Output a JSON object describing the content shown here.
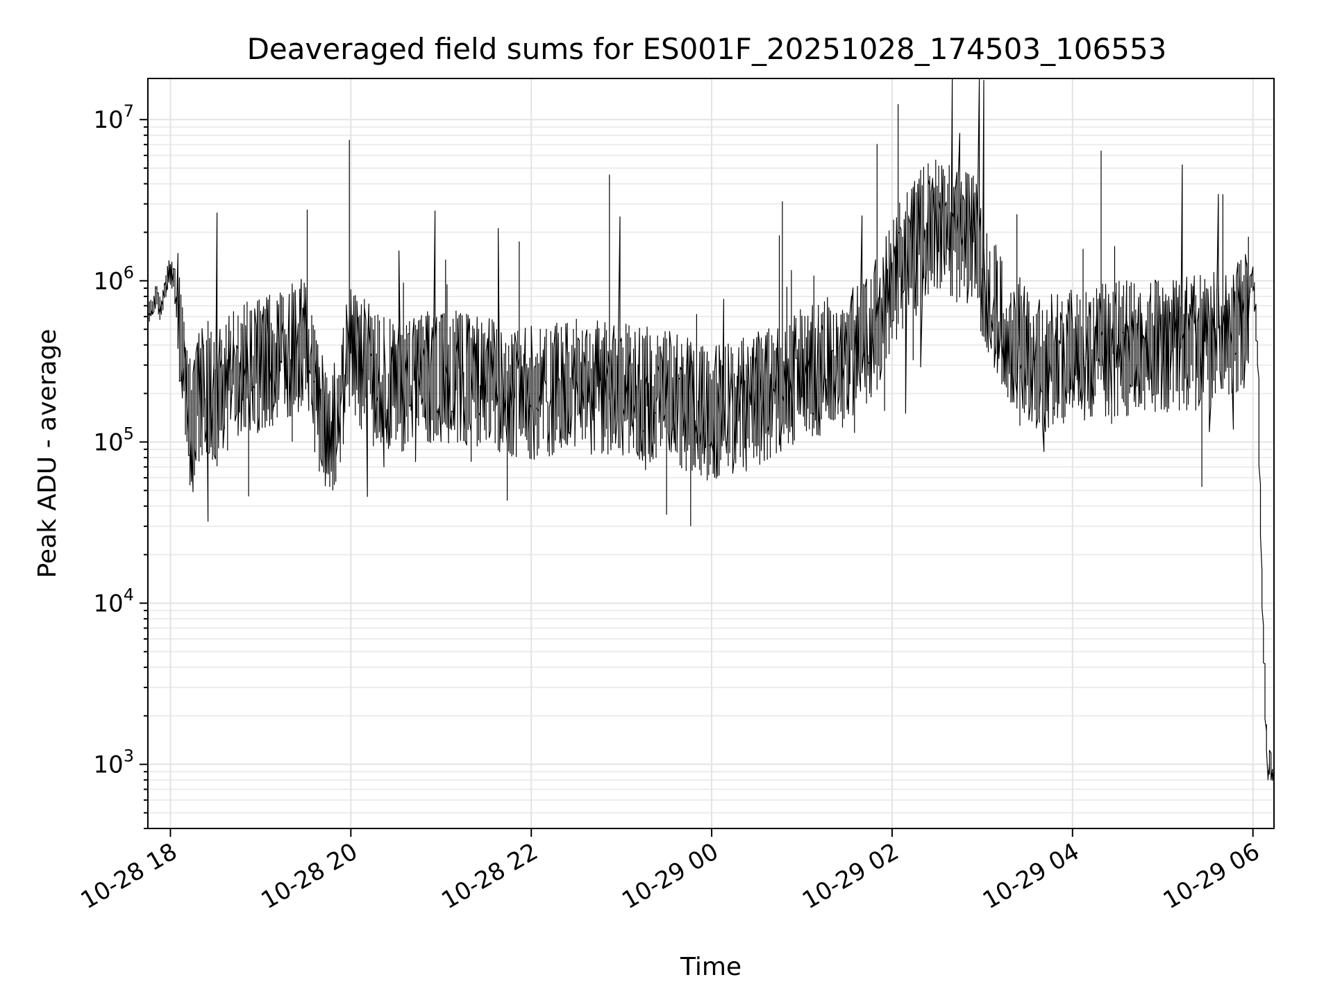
{
  "chart_data": {
    "type": "line",
    "title": "Deaveraged field sums for ES001F_20251028_174503_106553",
    "xlabel": "Time",
    "ylabel": "Peak ADU - average",
    "yscale": "log",
    "xlim": [
      "2025-10-28 17:45",
      "2025-10-29 06:14"
    ],
    "ylim": [
      400,
      18000000
    ],
    "grid": true,
    "x_ticks": [
      {
        "value": "2025-10-28 18:00",
        "label": "10-28 18"
      },
      {
        "value": "2025-10-28 20:00",
        "label": "10-28 20"
      },
      {
        "value": "2025-10-28 22:00",
        "label": "10-28 22"
      },
      {
        "value": "2025-10-29 00:00",
        "label": "10-29 00"
      },
      {
        "value": "2025-10-29 02:00",
        "label": "10-29 02"
      },
      {
        "value": "2025-10-29 04:00",
        "label": "10-29 04"
      },
      {
        "value": "2025-10-29 06:00",
        "label": "10-29 06"
      }
    ],
    "y_ticks": [
      {
        "value": 1000,
        "base": "10",
        "exp": "3"
      },
      {
        "value": 10000,
        "base": "10",
        "exp": "4"
      },
      {
        "value": 100000,
        "base": "10",
        "exp": "5"
      },
      {
        "value": 1000000,
        "base": "10",
        "exp": "6"
      },
      {
        "value": 10000000,
        "base": "10",
        "exp": "7"
      }
    ],
    "series": [
      {
        "color": "#000000",
        "x": [
          "2025-10-28 17:45",
          "2025-10-28 17:48",
          "2025-10-28 17:51",
          "2025-10-28 17:54",
          "2025-10-28 17:57",
          "2025-10-28 18:00",
          "2025-10-28 18:03",
          "2025-10-28 18:06",
          "2025-10-28 18:09",
          "2025-10-28 18:12",
          "2025-10-28 18:15",
          "2025-10-28 18:20",
          "2025-10-28 18:25",
          "2025-10-28 18:30",
          "2025-10-28 18:35",
          "2025-10-28 18:40",
          "2025-10-28 18:45",
          "2025-10-28 18:50",
          "2025-10-28 19:00",
          "2025-10-28 19:15",
          "2025-10-28 19:30",
          "2025-10-28 19:40",
          "2025-10-28 19:50",
          "2025-10-28 20:00",
          "2025-10-28 20:15",
          "2025-10-28 20:30",
          "2025-10-28 20:45",
          "2025-10-28 21:00",
          "2025-10-28 21:30",
          "2025-10-28 22:00",
          "2025-10-28 22:30",
          "2025-10-28 23:00",
          "2025-10-28 23:30",
          "2025-10-28 23:50",
          "2025-10-29 00:00",
          "2025-10-29 00:30",
          "2025-10-29 01:00",
          "2025-10-29 01:30",
          "2025-10-29 01:45",
          "2025-10-29 02:00",
          "2025-10-29 02:15",
          "2025-10-29 02:30",
          "2025-10-29 02:45",
          "2025-10-29 02:55",
          "2025-10-29 03:05",
          "2025-10-29 03:20",
          "2025-10-29 03:40",
          "2025-10-29 04:00",
          "2025-10-29 04:30",
          "2025-10-29 05:00",
          "2025-10-29 05:30",
          "2025-10-29 05:45",
          "2025-10-29 05:55",
          "2025-10-29 06:00",
          "2025-10-29 06:02",
          "2025-10-29 06:04",
          "2025-10-29 06:05",
          "2025-10-29 06:06",
          "2025-10-29 06:07",
          "2025-10-29 06:08",
          "2025-10-29 06:09",
          "2025-10-29 06:10",
          "2025-10-29 06:11",
          "2025-10-29 06:12",
          "2025-10-29 06:13",
          "2025-10-29 06:14"
        ],
        "y": [
          550000,
          700000,
          800000,
          650000,
          900000,
          1150000,
          1000000,
          500000,
          300000,
          150000,
          120000,
          200000,
          230000,
          180000,
          200000,
          250000,
          260000,
          280000,
          300000,
          350000,
          400000,
          150000,
          120000,
          400000,
          250000,
          220000,
          240000,
          260000,
          230000,
          200000,
          220000,
          210000,
          190000,
          160000,
          150000,
          180000,
          260000,
          330000,
          420000,
          900000,
          1700000,
          2300000,
          2000000,
          1800000,
          800000,
          450000,
          300000,
          350000,
          380000,
          400000,
          420000,
          450000,
          550000,
          1100000,
          700000,
          250000,
          60000,
          20000,
          8000,
          4000,
          2000,
          1000,
          800,
          1200,
          900,
          800
        ]
      }
    ]
  }
}
